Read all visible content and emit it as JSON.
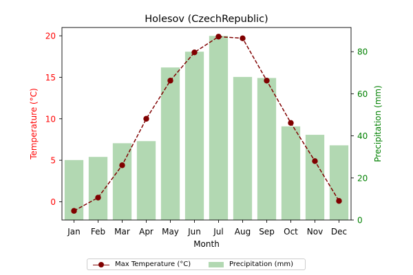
{
  "chart_data": {
    "type": "bar",
    "title": "Holesov (CzechRepublic)",
    "xlabel": "Month",
    "ylabel_left": "Temperature (°C)",
    "ylabel_right": "Precipitation (mm)",
    "categories": [
      "Jan",
      "Feb",
      "Mar",
      "Apr",
      "May",
      "Jun",
      "Jul",
      "Aug",
      "Sep",
      "Oct",
      "Nov",
      "Dec"
    ],
    "y_left_ticks": [
      0,
      5,
      10,
      15,
      20
    ],
    "y_right_ticks": [
      0,
      20,
      40,
      60,
      80
    ],
    "ylim_left": [
      -2.2,
      21.0
    ],
    "ylim_right": [
      0,
      91.5
    ],
    "series": [
      {
        "name": "Max Temperature (°C)",
        "type": "line",
        "axis": "left",
        "values": [
          -1.1,
          0.5,
          4.4,
          10.0,
          14.6,
          18.0,
          19.9,
          19.7,
          14.6,
          9.5,
          4.9,
          0.1
        ]
      },
      {
        "name": "Precipitation (mm)",
        "type": "bar",
        "axis": "right",
        "values": [
          28.5,
          30.0,
          36.5,
          37.5,
          72.5,
          80.0,
          87.5,
          68.0,
          67.5,
          44.5,
          40.5,
          35.5
        ]
      }
    ],
    "legend_position": "bottom-center",
    "grid": false
  },
  "colors": {
    "temperature": "#800000",
    "precipitation": "#54a854",
    "left_axis": "#ff0000",
    "right_axis": "#008000"
  }
}
